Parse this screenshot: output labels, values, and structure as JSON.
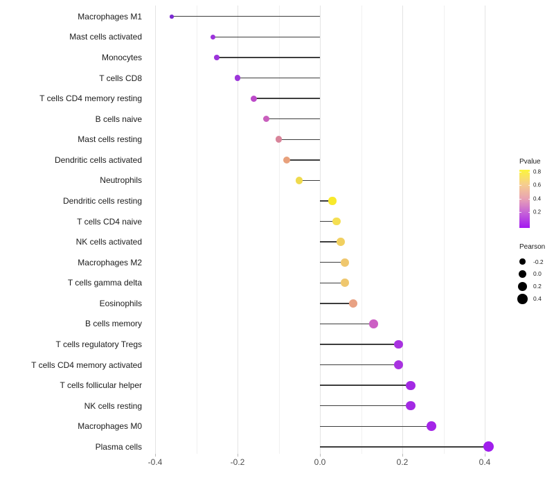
{
  "chart_data": {
    "type": "lollipop",
    "orientation": "horizontal",
    "title": "",
    "xlabel": "",
    "ylabel": "",
    "background": "#ffffff",
    "grid": "vertical-only",
    "xlim": [
      -0.42,
      0.48
    ],
    "x_axis": {
      "ticks": [
        {
          "label": "-0.4",
          "value": -0.4
        },
        {
          "label": "-0.2",
          "value": -0.2
        },
        {
          "label": "0.0",
          "value": 0.0
        },
        {
          "label": "0.2",
          "value": 0.2
        },
        {
          "label": "0.4",
          "value": 0.4
        }
      ]
    },
    "points": [
      {
        "category": "Macrophages M1",
        "pearson": -0.36,
        "pvalue": 0.01,
        "color": "#7B2BD2"
      },
      {
        "category": "Mast cells activated",
        "pearson": -0.26,
        "pvalue": 0.04,
        "color": "#9C33DB"
      },
      {
        "category": "Monocytes",
        "pearson": -0.25,
        "pvalue": 0.04,
        "color": "#9C33DB"
      },
      {
        "category": "T cells CD8",
        "pearson": -0.2,
        "pvalue": 0.06,
        "color": "#9C36DA"
      },
      {
        "category": "T cells CD4 memory resting",
        "pearson": -0.16,
        "pvalue": 0.15,
        "color": "#BC49C9"
      },
      {
        "category": "B cells naive",
        "pearson": -0.13,
        "pvalue": 0.25,
        "color": "#C95FBD"
      },
      {
        "category": "Mast cells resting",
        "pearson": -0.1,
        "pvalue": 0.35,
        "color": "#D8849A"
      },
      {
        "category": "Dendritic cells activated",
        "pearson": -0.08,
        "pvalue": 0.5,
        "color": "#E8A17C"
      },
      {
        "category": "Neutrophils",
        "pearson": -0.05,
        "pvalue": 0.7,
        "color": "#EFDA4D"
      },
      {
        "category": "Dendritic cells resting",
        "pearson": 0.03,
        "pvalue": 0.8,
        "color": "#F8E92C"
      },
      {
        "category": "T cells CD4 naive",
        "pearson": 0.04,
        "pvalue": 0.73,
        "color": "#F5DF52"
      },
      {
        "category": "NK cells activated",
        "pearson": 0.05,
        "pvalue": 0.65,
        "color": "#F1D060"
      },
      {
        "category": "Macrophages M2",
        "pearson": 0.06,
        "pvalue": 0.6,
        "color": "#EFC76E"
      },
      {
        "category": "T cells gamma delta",
        "pearson": 0.06,
        "pvalue": 0.6,
        "color": "#EFC76E"
      },
      {
        "category": "Eosinophils",
        "pearson": 0.08,
        "pvalue": 0.45,
        "color": "#E8A183"
      },
      {
        "category": "B cells memory",
        "pearson": 0.13,
        "pvalue": 0.2,
        "color": "#CC5FC4"
      },
      {
        "category": "T cells regulatory  Tregs",
        "pearson": 0.19,
        "pvalue": 0.08,
        "color": "#A832E0"
      },
      {
        "category": "T cells CD4 memory activated",
        "pearson": 0.19,
        "pvalue": 0.08,
        "color": "#A832E0"
      },
      {
        "category": "T cells follicular helper",
        "pearson": 0.22,
        "pvalue": 0.05,
        "color": "#A32AE4"
      },
      {
        "category": "NK cells resting",
        "pearson": 0.22,
        "pvalue": 0.05,
        "color": "#A32AE4"
      },
      {
        "category": "Macrophages M0",
        "pearson": 0.27,
        "pvalue": 0.03,
        "color": "#A425E8"
      },
      {
        "category": "Plasma cells",
        "pearson": 0.41,
        "pvalue": 0.02,
        "color": "#A01EEC"
      }
    ],
    "legend": {
      "pvalue": {
        "title": "Pvalue",
        "gradient_top_to_bottom": [
          "#FCF53A",
          "#F6CE8E",
          "#E8A2B4",
          "#C45FD9",
          "#A318F0"
        ],
        "ticks": [
          {
            "label": "0.8",
            "value": 0.8
          },
          {
            "label": "0.6",
            "value": 0.6
          },
          {
            "label": "0.4",
            "value": 0.4
          },
          {
            "label": "0.2",
            "value": 0.2
          }
        ]
      },
      "pearson": {
        "title": "Pearson",
        "items": [
          {
            "label": "-0.2",
            "value": -0.2
          },
          {
            "label": "0.0",
            "value": 0.0
          },
          {
            "label": "0.2",
            "value": 0.2
          },
          {
            "label": "0.4",
            "value": 0.4
          }
        ]
      }
    }
  }
}
